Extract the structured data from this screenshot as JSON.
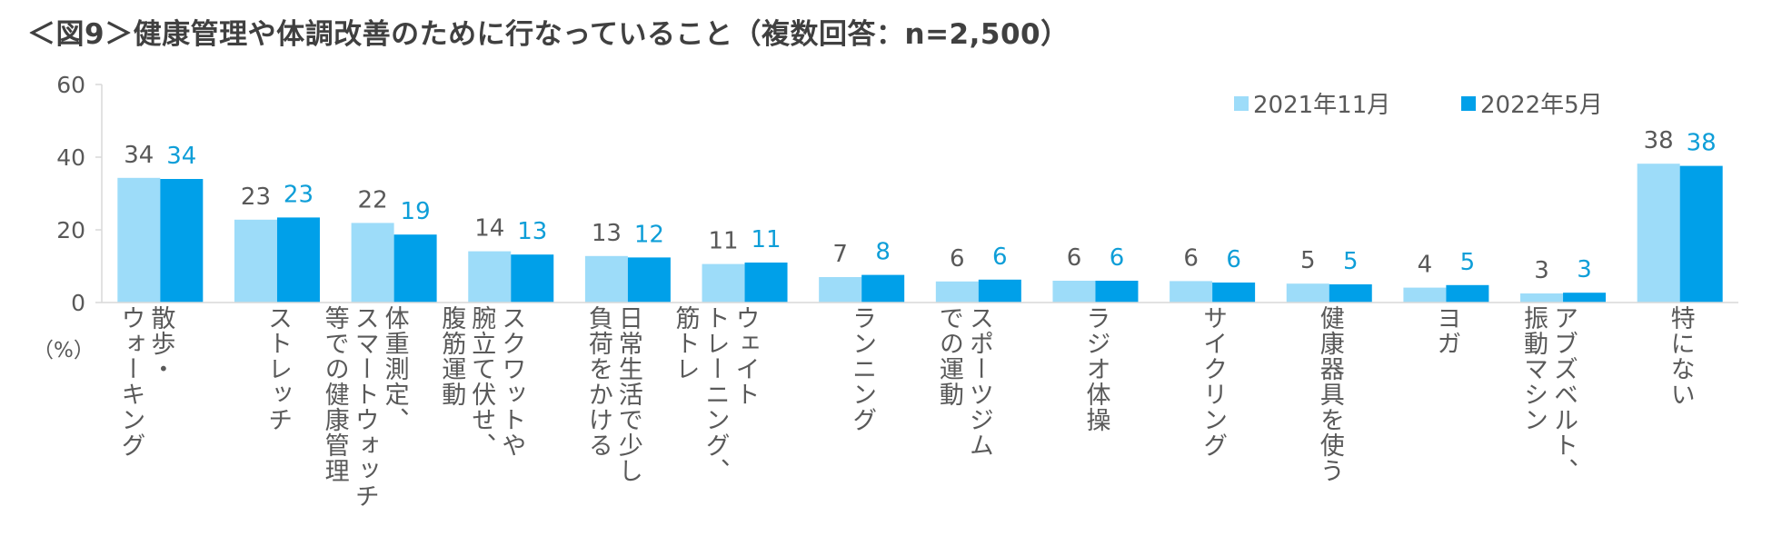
{
  "title": "＜図9＞健康管理や体調改善のために行なっていること（複数回答：n=2,500）",
  "unit_label": "（%）",
  "chart_data": {
    "type": "bar",
    "title": "＜図9＞健康管理や体調改善のために行なっていること（複数回答：n=2,500）",
    "ylabel": "（%）",
    "ylim": [
      0,
      60
    ],
    "yticks": [
      "0",
      "20",
      "40",
      "60"
    ],
    "categories": [
      "散歩・\nウォーキング",
      "ストレッチ",
      "体重測定、\nスマートウォッチ\n等での健康管理",
      "スクワットや\n腕立て伏せ、\n腹筋運動",
      "日常生活で少し\n負荷をかける",
      "ウェイト\nトレーニング、\n筋トレ",
      "ランニング",
      "スポーツジム\nでの運動",
      "ラジオ体操",
      "サイクリング",
      "健康器具を使う",
      "ヨガ",
      "アブズベルト、\n振動マシン",
      "特にない"
    ],
    "series": [
      {
        "name": "2021年11月",
        "color": "#9DDCF9",
        "label_color": "#595959",
        "values": [
          34,
          23,
          22,
          14,
          13,
          11,
          7,
          6,
          6,
          6,
          5,
          4,
          3,
          38
        ],
        "bar_values": [
          34.3,
          22.8,
          21.9,
          14.1,
          12.8,
          10.6,
          7.0,
          5.8,
          6.0,
          5.9,
          5.2,
          4.1,
          2.5,
          38.2
        ]
      },
      {
        "name": "2022年5月",
        "color": "#00A0E9",
        "label_color": "#0E9ED8",
        "values": [
          34,
          23,
          19,
          13,
          12,
          11,
          8,
          6,
          6,
          6,
          5,
          5,
          3,
          38
        ],
        "bar_values": [
          34.0,
          23.4,
          18.7,
          13.2,
          12.4,
          11.0,
          7.6,
          6.3,
          6.0,
          5.5,
          5.0,
          4.8,
          2.7,
          37.6
        ]
      }
    ],
    "legend_position": "top-right"
  }
}
